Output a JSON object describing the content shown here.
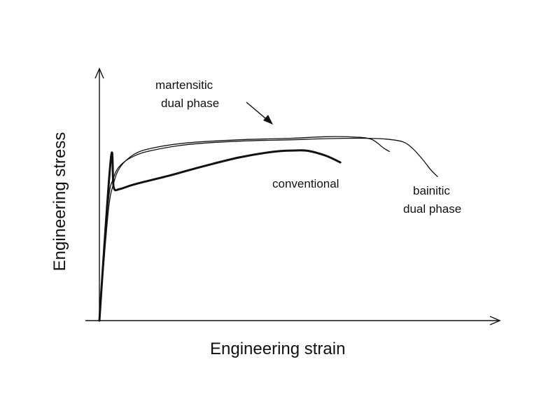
{
  "chart_data": {
    "type": "line",
    "title": "",
    "xlabel": "Engineering strain",
    "ylabel": "Engineering stress",
    "xlim": [
      0,
      100
    ],
    "ylim": [
      0,
      100
    ],
    "grid": false,
    "legend": "none",
    "series": [
      {
        "name": "conventional",
        "label_lines": [
          "conventional"
        ],
        "points": [
          [
            0,
            0
          ],
          [
            3.3,
            83.3
          ],
          [
            4.1,
            68.5
          ],
          [
            5.8,
            67.6
          ],
          [
            10,
            70
          ],
          [
            20,
            74.5
          ],
          [
            30,
            79.4
          ],
          [
            40,
            83.8
          ],
          [
            50,
            86.8
          ],
          [
            56,
            87.4
          ],
          [
            60,
            87.2
          ],
          [
            65,
            84.7
          ],
          [
            69.1,
            81.3
          ]
        ]
      },
      {
        "name": "martensitic dual phase",
        "label_lines": [
          "martensitic",
          "dual phase"
        ],
        "points": [
          [
            0,
            0
          ],
          [
            2.5,
            55
          ],
          [
            4,
            70
          ],
          [
            6,
            79
          ],
          [
            10,
            85.5
          ],
          [
            15,
            88.6
          ],
          [
            25,
            91.3
          ],
          [
            40,
            92.9
          ],
          [
            55,
            93.7
          ],
          [
            65,
            94.5
          ],
          [
            73,
            94.3
          ],
          [
            78,
            93.2
          ],
          [
            81.5,
            88.7
          ],
          [
            83.2,
            86.9
          ]
        ]
      },
      {
        "name": "bainitic dual phase",
        "label_lines": [
          "bainitic",
          "dual phase"
        ],
        "points": [
          [
            0,
            0
          ],
          [
            2.5,
            60
          ],
          [
            4,
            73
          ],
          [
            6,
            79.8
          ],
          [
            10,
            84.6
          ],
          [
            15,
            87.4
          ],
          [
            25,
            90.4
          ],
          [
            40,
            92.2
          ],
          [
            55,
            92.9
          ],
          [
            65,
            93.5
          ],
          [
            75,
            93.7
          ],
          [
            82,
            93.3
          ],
          [
            87,
            91.9
          ],
          [
            90,
            88.2
          ],
          [
            93,
            82.2
          ],
          [
            95,
            77.6
          ],
          [
            97,
            74.0
          ]
        ]
      }
    ]
  },
  "colors": {
    "ink": "#111111",
    "background": "#ffffff"
  }
}
